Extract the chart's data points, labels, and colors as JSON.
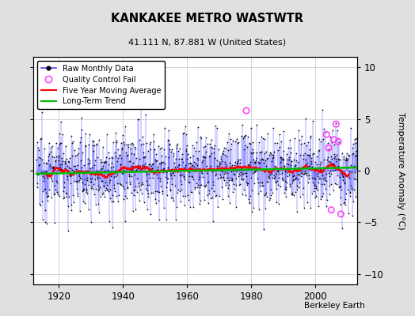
{
  "title": "KANKAKEE METRO WASTWTR",
  "subtitle": "41.111 N, 87.881 W (United States)",
  "ylabel": "Temperature Anomaly (°C)",
  "attribution": "Berkeley Earth",
  "ylim": [
    -11,
    11
  ],
  "yticks": [
    -10,
    -5,
    0,
    5,
    10
  ],
  "year_start": 1913,
  "year_end": 2013,
  "xlim_start": 1912,
  "xlim_end": 2013,
  "xticks": [
    1920,
    1940,
    1960,
    1980,
    2000
  ],
  "background_color": "#e0e0e0",
  "plot_bg_color": "#ffffff",
  "line_color": "#4444ff",
  "ma_color": "#ff0000",
  "trend_color": "#00bb00",
  "qc_color": "#ff44ff",
  "seed": 12345
}
